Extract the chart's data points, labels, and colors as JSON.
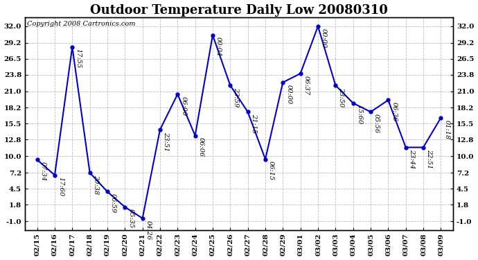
{
  "title": "Outdoor Temperature Daily Low 20080310",
  "copyright": "Copyright 2008 Cartronics.com",
  "line_color": "#0000CC",
  "marker_color": "#0000CC",
  "background_color": "#ffffff",
  "grid_color": "#bbbbbb",
  "dates": [
    "02/15",
    "02/16",
    "02/17",
    "02/18",
    "02/19",
    "02/20",
    "02/21",
    "02/22",
    "02/23",
    "02/24",
    "02/25",
    "02/26",
    "02/27",
    "02/28",
    "02/29",
    "03/01",
    "03/02",
    "03/03",
    "03/04",
    "03/05",
    "03/06",
    "03/07",
    "03/08",
    "03/09"
  ],
  "values": [
    9.4,
    6.8,
    28.5,
    7.2,
    4.0,
    1.4,
    -0.5,
    14.5,
    20.5,
    13.5,
    30.5,
    22.0,
    17.5,
    9.5,
    22.5,
    24.0,
    32.0,
    22.0,
    19.0,
    17.5,
    19.5,
    11.5,
    11.5,
    16.5
  ],
  "time_labels": [
    "07:34",
    "17:60",
    "17:55",
    "20:38",
    "06:59",
    "05:35",
    "04:26",
    "23:51",
    "06:00",
    "06:06",
    "00:04",
    "23:59",
    "21:15",
    "06:15",
    "00:00",
    "06:37",
    "00:00",
    "23:50",
    "15:60",
    "05:56",
    "06:36",
    "23:44",
    "22:51",
    "01:18"
  ],
  "yticks": [
    -1.0,
    1.8,
    4.5,
    7.2,
    10.0,
    12.8,
    15.5,
    18.2,
    21.0,
    23.8,
    26.5,
    29.2,
    32.0
  ],
  "ylim": [
    -2.5,
    33.5
  ],
  "title_fontsize": 13,
  "label_fontsize": 7,
  "tick_fontsize": 7.5,
  "copyright_fontsize": 7
}
